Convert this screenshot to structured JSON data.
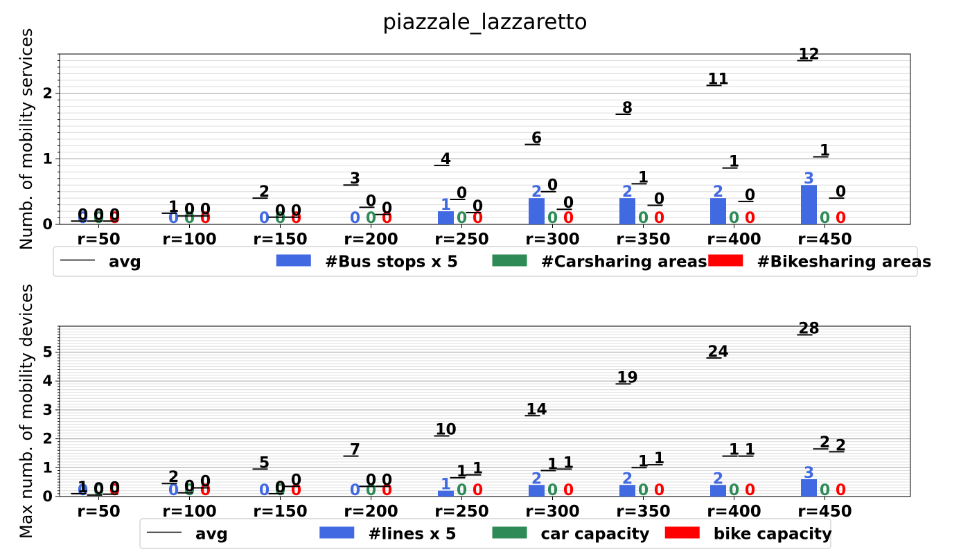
{
  "title": "piazzale_lazzaretto",
  "colors": {
    "avg": "#000000",
    "bus": "#4169e1",
    "car": "#2e8b57",
    "bike": "#ff0000"
  },
  "chart_data": [
    {
      "type": "bar",
      "ylabel": "Numb. of mobility services",
      "categories": [
        "r=50",
        "r=100",
        "r=150",
        "r=200",
        "r=250",
        "r=300",
        "r=350",
        "r=400",
        "r=450"
      ],
      "ylim": [
        0,
        2.6
      ],
      "yticks": [
        0,
        1,
        2
      ],
      "grid": true,
      "legend_position": "below",
      "series": [
        {
          "name": "#Bus stops x 5",
          "kind": "bar",
          "color": "#4169e1",
          "values": [
            0,
            0,
            0,
            0,
            0.2,
            0.4,
            0.4,
            0.4,
            0.6
          ],
          "labels": [
            "0",
            "0",
            "0",
            "0",
            "1",
            "2",
            "2",
            "2",
            "3"
          ]
        },
        {
          "name": "#Carsharing areas",
          "kind": "bar",
          "color": "#2e8b57",
          "values": [
            0,
            0,
            0,
            0,
            0,
            0,
            0,
            0,
            0
          ],
          "labels": [
            "0",
            "0",
            "0",
            "0",
            "0",
            "0",
            "0",
            "0",
            "0"
          ]
        },
        {
          "name": "#Bikesharing areas",
          "kind": "bar",
          "color": "#ff0000",
          "values": [
            0,
            0,
            0,
            0,
            0,
            0,
            0,
            0,
            0
          ],
          "labels": [
            "0",
            "0",
            "0",
            "0",
            "0",
            "0",
            "0",
            "0",
            "0"
          ]
        }
      ],
      "avg": {
        "name": "avg",
        "values": [
          [
            0.05,
            0.05,
            0.05
          ],
          [
            0.17,
            0.13,
            0.13
          ],
          [
            0.4,
            0.11,
            0.11
          ],
          [
            0.6,
            0.26,
            0.15
          ],
          [
            0.9,
            0.38,
            0.18
          ],
          [
            1.22,
            0.5,
            0.23
          ],
          [
            1.68,
            0.62,
            0.29
          ],
          [
            2.12,
            0.86,
            0.35
          ],
          [
            2.5,
            1.03,
            0.4
          ]
        ],
        "labels": [
          [
            "0",
            "0",
            "0"
          ],
          [
            "1",
            "0",
            "0"
          ],
          [
            "2",
            "0",
            "0"
          ],
          [
            "3",
            "0",
            "0"
          ],
          [
            "4",
            "0",
            "0"
          ],
          [
            "6",
            "0",
            "0"
          ],
          [
            "8",
            "1",
            "0"
          ],
          [
            "11",
            "1",
            "0"
          ],
          [
            "12",
            "1",
            "0"
          ]
        ]
      }
    },
    {
      "type": "bar",
      "ylabel": "Max numb. of mobility devices",
      "categories": [
        "r=50",
        "r=100",
        "r=150",
        "r=200",
        "r=250",
        "r=300",
        "r=350",
        "r=400",
        "r=450"
      ],
      "ylim": [
        0,
        5.9
      ],
      "yticks": [
        0,
        1,
        2,
        3,
        4,
        5
      ],
      "grid": true,
      "legend_position": "below",
      "series": [
        {
          "name": "#lines x 5",
          "kind": "bar",
          "color": "#4169e1",
          "values": [
            0,
            0,
            0,
            0,
            0.2,
            0.4,
            0.4,
            0.4,
            0.6
          ],
          "labels": [
            "0",
            "0",
            "0",
            "0",
            "1",
            "2",
            "2",
            "2",
            "3"
          ]
        },
        {
          "name": "car capacity",
          "kind": "bar",
          "color": "#2e8b57",
          "values": [
            0,
            0,
            0,
            0,
            0,
            0,
            0,
            0,
            0
          ],
          "labels": [
            "0",
            "0",
            "0",
            "0",
            "0",
            "0",
            "0",
            "0",
            "0"
          ]
        },
        {
          "name": "bike capacity",
          "kind": "bar",
          "color": "#ff0000",
          "values": [
            0,
            0,
            0,
            0,
            0,
            0,
            0,
            0,
            0
          ],
          "labels": [
            "0",
            "0",
            "0",
            "0",
            "0",
            "0",
            "0",
            "0",
            "0"
          ]
        }
      ],
      "avg": {
        "name": "avg",
        "values": [
          [
            0.1,
            0.05,
            0.08
          ],
          [
            0.45,
            0.13,
            0.3
          ],
          [
            0.95,
            0.1,
            0.35
          ],
          [
            1.4,
            0.35,
            0.35
          ],
          [
            2.1,
            0.65,
            0.75
          ],
          [
            2.8,
            0.9,
            0.95
          ],
          [
            3.9,
            1.0,
            1.1
          ],
          [
            4.8,
            1.4,
            1.4
          ],
          [
            5.6,
            1.65,
            1.55
          ]
        ],
        "labels": [
          [
            "1",
            "0",
            "0"
          ],
          [
            "2",
            "0",
            "0"
          ],
          [
            "5",
            "0",
            "0"
          ],
          [
            "7",
            "0",
            "0"
          ],
          [
            "10",
            "1",
            "1"
          ],
          [
            "14",
            "1",
            "1"
          ],
          [
            "19",
            "1",
            "1"
          ],
          [
            "24",
            "1",
            "1"
          ],
          [
            "28",
            "2",
            "2"
          ]
        ]
      }
    }
  ]
}
